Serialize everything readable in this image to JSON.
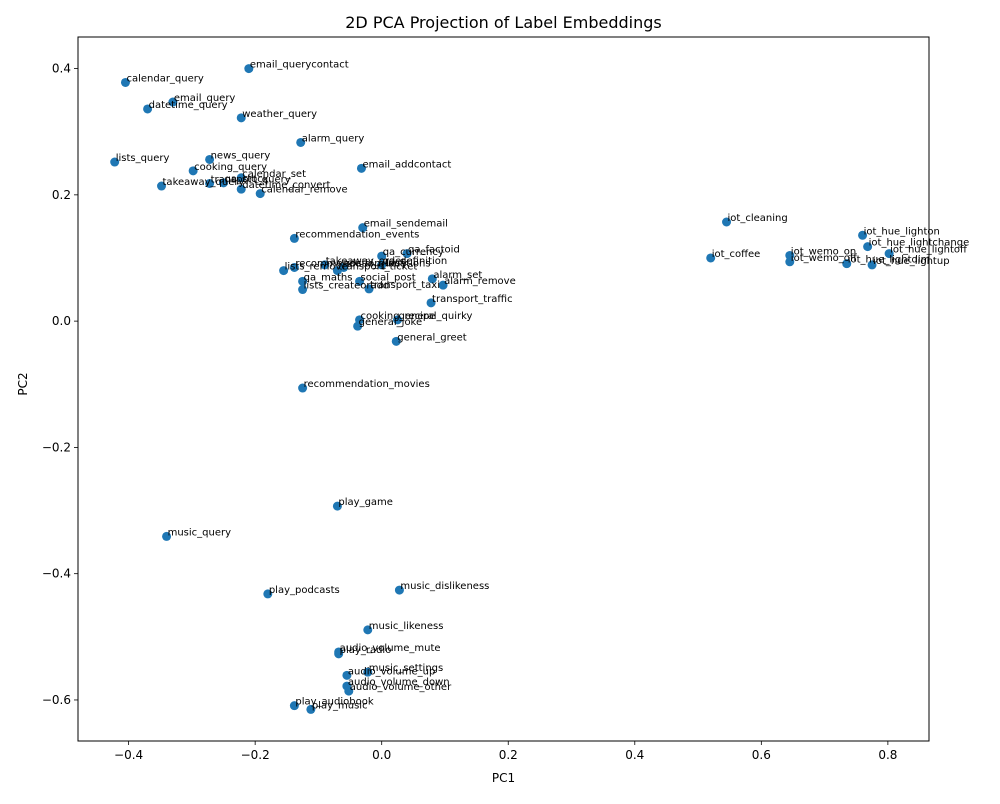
{
  "chart_data": {
    "type": "scatter",
    "title": "2D PCA Projection of Label Embeddings",
    "xlabel": "PC1",
    "ylabel": "PC2",
    "xlim": [
      -0.48,
      0.865
    ],
    "ylim": [
      -0.665,
      0.45
    ],
    "xticks": [
      -0.4,
      -0.2,
      0.0,
      0.2,
      0.4,
      0.6,
      0.8
    ],
    "xtick_labels": [
      "−0.4",
      "−0.2",
      "0.0",
      "0.2",
      "0.4",
      "0.6",
      "0.8"
    ],
    "yticks": [
      -0.6,
      -0.4,
      -0.2,
      0.0,
      0.2,
      0.4
    ],
    "ytick_labels": [
      "−0.6",
      "−0.4",
      "−0.2",
      "0.0",
      "0.2",
      "0.4"
    ],
    "grid": false,
    "point_color": "#1f77b4",
    "points": [
      {
        "label": "email_querycontact",
        "x": -0.21,
        "y": 0.4
      },
      {
        "label": "calendar_query",
        "x": -0.405,
        "y": 0.378
      },
      {
        "label": "email_query",
        "x": -0.33,
        "y": 0.347
      },
      {
        "label": "datetime_query",
        "x": -0.37,
        "y": 0.336
      },
      {
        "label": "weather_query",
        "x": -0.222,
        "y": 0.322
      },
      {
        "label": "alarm_query",
        "x": -0.128,
        "y": 0.283
      },
      {
        "label": "lists_query",
        "x": -0.422,
        "y": 0.252
      },
      {
        "label": "news_query",
        "x": -0.272,
        "y": 0.256
      },
      {
        "label": "email_addcontact",
        "x": -0.032,
        "y": 0.242
      },
      {
        "label": "cooking_query",
        "x": -0.298,
        "y": 0.238
      },
      {
        "label": "calendar_set",
        "x": -0.222,
        "y": 0.227
      },
      {
        "label": "transport_query",
        "x": -0.272,
        "y": 0.218
      },
      {
        "label": "qa_stock",
        "x": -0.25,
        "y": 0.219
      },
      {
        "label": "takeaway_query",
        "x": -0.348,
        "y": 0.214
      },
      {
        "label": "datetime_convert",
        "x": -0.222,
        "y": 0.209
      },
      {
        "label": "calendar_remove",
        "x": -0.192,
        "y": 0.202
      },
      {
        "label": "iot_cleaning",
        "x": 0.545,
        "y": 0.157
      },
      {
        "label": "email_sendemail",
        "x": -0.03,
        "y": 0.148
      },
      {
        "label": "iot_hue_lighton",
        "x": 0.76,
        "y": 0.136
      },
      {
        "label": "recommendation_events",
        "x": -0.138,
        "y": 0.131
      },
      {
        "label": "iot_hue_lightchange",
        "x": 0.768,
        "y": 0.118
      },
      {
        "label": "qa_factoid",
        "x": 0.04,
        "y": 0.107
      },
      {
        "label": "iot_hue_lightoff",
        "x": 0.802,
        "y": 0.107
      },
      {
        "label": "qa_currency",
        "x": 0.0,
        "y": 0.103
      },
      {
        "label": "iot_wemo_on",
        "x": 0.645,
        "y": 0.104
      },
      {
        "label": "iot_coffee",
        "x": 0.52,
        "y": 0.1
      },
      {
        "label": "iot_wemo_off",
        "x": 0.645,
        "y": 0.094
      },
      {
        "label": "iot_hue_lightdim",
        "x": 0.735,
        "y": 0.091
      },
      {
        "label": "iot_hue_lightup",
        "x": 0.775,
        "y": 0.089
      },
      {
        "label": "takeaway_order",
        "x": -0.09,
        "y": 0.089
      },
      {
        "label": "qa_definition",
        "x": 0.0,
        "y": 0.089
      },
      {
        "label": "recommendation_locations",
        "x": -0.138,
        "y": 0.085
      },
      {
        "label": "social_query",
        "x": -0.06,
        "y": 0.085
      },
      {
        "label": "lists_remove",
        "x": -0.155,
        "y": 0.08
      },
      {
        "label": "transport_ticket",
        "x": -0.07,
        "y": 0.08
      },
      {
        "label": "alarm_set",
        "x": 0.08,
        "y": 0.067
      },
      {
        "label": "qa_maths",
        "x": -0.125,
        "y": 0.063
      },
      {
        "label": "social_post",
        "x": -0.035,
        "y": 0.063
      },
      {
        "label": "alarm_remove",
        "x": 0.097,
        "y": 0.057
      },
      {
        "label": "lists_createoradd",
        "x": -0.125,
        "y": 0.05
      },
      {
        "label": "transport_taxi",
        "x": -0.02,
        "y": 0.051
      },
      {
        "label": "transport_traffic",
        "x": 0.078,
        "y": 0.029
      },
      {
        "label": "cooking_recipe",
        "x": -0.035,
        "y": 0.002
      },
      {
        "label": "general_quirky",
        "x": 0.025,
        "y": 0.002
      },
      {
        "label": "general_joke",
        "x": -0.038,
        "y": -0.008
      },
      {
        "label": "general_greet",
        "x": 0.023,
        "y": -0.032
      },
      {
        "label": "recommendation_movies",
        "x": -0.125,
        "y": -0.106
      },
      {
        "label": "play_game",
        "x": -0.07,
        "y": -0.293
      },
      {
        "label": "music_query",
        "x": -0.34,
        "y": -0.341
      },
      {
        "label": "music_dislikeness",
        "x": 0.028,
        "y": -0.426
      },
      {
        "label": "play_podcasts",
        "x": -0.18,
        "y": -0.432
      },
      {
        "label": "music_likeness",
        "x": -0.022,
        "y": -0.489
      },
      {
        "label": "audio_volume_mute",
        "x": -0.068,
        "y": -0.524
      },
      {
        "label": "play_radio",
        "x": -0.068,
        "y": -0.527
      },
      {
        "label": "music_settings",
        "x": -0.022,
        "y": -0.556
      },
      {
        "label": "audio_volume_up",
        "x": -0.055,
        "y": -0.561
      },
      {
        "label": "audio_volume_down",
        "x": -0.055,
        "y": -0.578
      },
      {
        "label": "audio_volume_other",
        "x": -0.052,
        "y": -0.586
      },
      {
        "label": "play_audiobook",
        "x": -0.138,
        "y": -0.609
      },
      {
        "label": "play_music",
        "x": -0.112,
        "y": -0.615
      }
    ]
  }
}
